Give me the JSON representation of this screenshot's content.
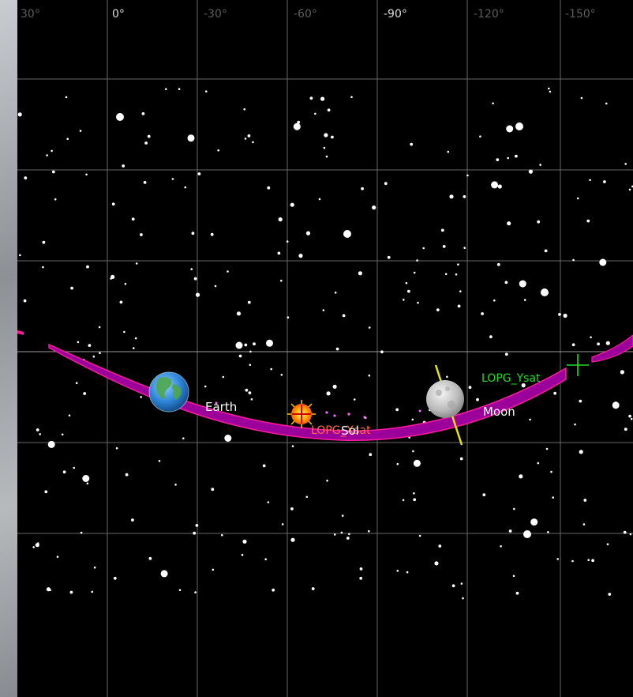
{
  "sky": {
    "longitude_ticks": [
      {
        "label": "30°",
        "bright": false
      },
      {
        "label": "0°",
        "bright": true
      },
      {
        "label": "-30°",
        "bright": false
      },
      {
        "label": "-60°",
        "bright": false
      },
      {
        "label": "-90°",
        "bright": true
      },
      {
        "label": "-120°",
        "bright": false
      },
      {
        "label": "-150°",
        "bright": false
      }
    ],
    "bodies": {
      "earth": {
        "label": "Earth"
      },
      "sun": {
        "label": "Sol"
      },
      "moon": {
        "label": "Moon"
      }
    },
    "satellites": {
      "lopg_x": {
        "label": "LOPG_Xsat",
        "color": "#ff6a4d"
      },
      "lopg_y": {
        "label": "LOPG_Ysat",
        "color": "#22dd22"
      }
    },
    "colors": {
      "background": "#000000",
      "grid": "#8a8a8a",
      "ecliptic_band": "#9b009b",
      "ecliptic_edge": "#ff1aa0",
      "moon_axis": "#e6e600"
    }
  }
}
